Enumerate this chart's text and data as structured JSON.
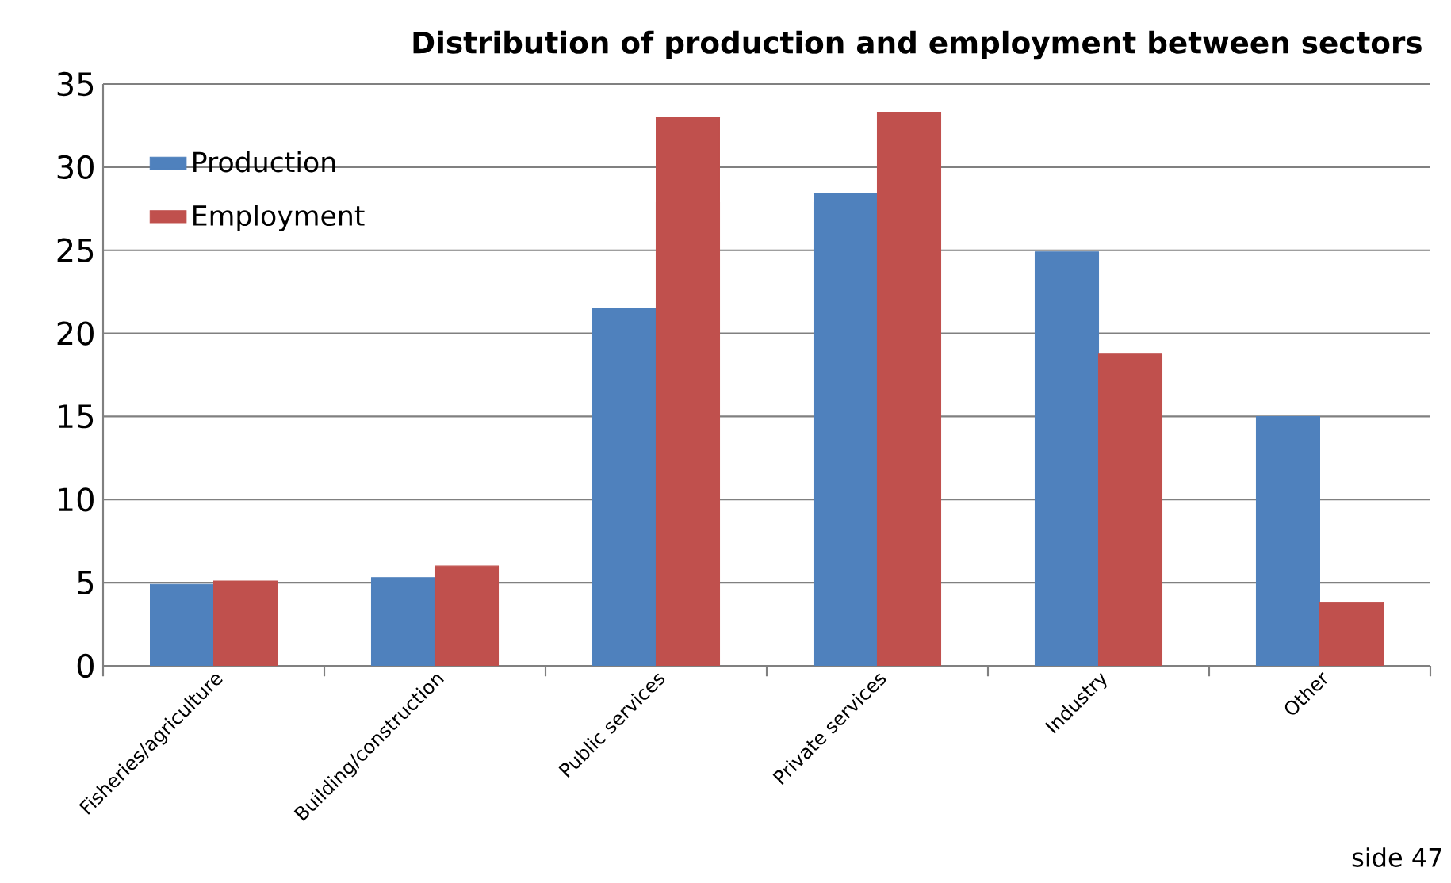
{
  "chart_data": {
    "type": "bar",
    "title": "Distribution of production and employment between sectors",
    "categories": [
      "Fisheries/agriculture",
      "Building/construction",
      "Public services",
      "Private services",
      "Industry",
      "Other"
    ],
    "series": [
      {
        "name": "Production",
        "color": "#4f81bd",
        "values": [
          4.9,
          5.3,
          21.5,
          28.4,
          24.9,
          15.0
        ]
      },
      {
        "name": "Employment",
        "color": "#c0504d",
        "values": [
          5.1,
          6.0,
          33.0,
          33.3,
          18.8,
          3.8
        ]
      }
    ],
    "ylim": [
      0,
      35
    ],
    "yticks": [
      0,
      5,
      10,
      15,
      20,
      25,
      30,
      35
    ],
    "grid": "y",
    "legend": "top left",
    "annotations": [
      "side 47"
    ]
  }
}
